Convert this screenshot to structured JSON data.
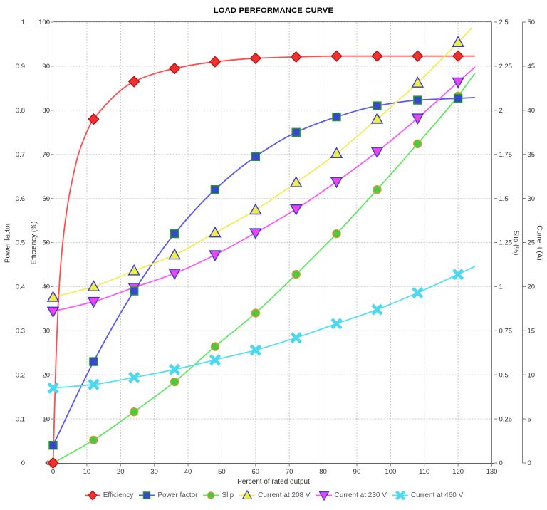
{
  "title": "LOAD PERFORMANCE CURVE",
  "chart_data": {
    "type": "line",
    "title": "LOAD PERFORMANCE CURVE",
    "xlabel": "Percent of rated output",
    "x_range": [
      0,
      130
    ],
    "x_tick_step": 10,
    "grid": "dashed",
    "legend_position": "bottom",
    "axes": {
      "power_factor": {
        "label": "Power factor",
        "range": [
          0,
          1
        ],
        "tick_step": 0.1,
        "side": "left-outer"
      },
      "efficiency": {
        "label": "Efficiency (%)",
        "range": [
          0,
          100
        ],
        "tick_step": 10,
        "side": "left-inner"
      },
      "slip": {
        "label": "Slip (%)",
        "range": [
          0,
          2.5
        ],
        "tick_step": 0.25,
        "side": "right-inner"
      },
      "current": {
        "label": "Current (A)",
        "range": [
          0,
          50
        ],
        "tick_step": 5,
        "side": "right-outer"
      }
    },
    "x": [
      0,
      12,
      24,
      36,
      48,
      60,
      72,
      84,
      96,
      108,
      120
    ],
    "series": [
      {
        "name": "Efficiency",
        "axis": "efficiency",
        "marker": "diamond",
        "line_color": "#ff5050",
        "marker_fill": "#ee3232",
        "marker_edge": "#bb1414",
        "values": [
          0,
          78,
          86.5,
          89.5,
          91,
          91.8,
          92.1,
          92.3,
          92.3,
          92.3,
          92.3
        ],
        "curve_lead_in": [
          [
            0,
            0
          ],
          [
            0.8,
            22
          ],
          [
            1.6,
            37
          ],
          [
            2.5,
            47
          ],
          [
            4,
            57
          ],
          [
            5.5,
            63.5
          ],
          [
            7.5,
            70
          ],
          [
            9.5,
            74.2
          ]
        ],
        "line_end": [
          125,
          92.3
        ]
      },
      {
        "name": "Power factor",
        "axis": "power_factor",
        "marker": "square",
        "line_color": "#5a5af0",
        "marker_fill": "#3a46d2",
        "marker_edge": "#1e9e1e",
        "values": [
          0.04,
          0.23,
          0.39,
          0.52,
          0.62,
          0.695,
          0.75,
          0.785,
          0.81,
          0.823,
          0.827
        ],
        "line_end": [
          125,
          0.829
        ]
      },
      {
        "name": "Slip",
        "axis": "slip",
        "marker": "circle",
        "line_color": "#62e862",
        "marker_fill": "#44cc44",
        "marker_edge": "#d89a28",
        "values": [
          0,
          0.13,
          0.29,
          0.46,
          0.66,
          0.85,
          1.07,
          1.3,
          1.55,
          1.81,
          2.08
        ],
        "line_end": [
          125,
          2.21
        ]
      },
      {
        "name": "Current at 208 V",
        "axis": "current",
        "marker": "triangle-up",
        "line_color": "#f6ec58",
        "marker_fill": "#eeee44",
        "marker_edge": "#3b3bd0",
        "values": [
          18.8,
          20.0,
          21.8,
          23.6,
          26.1,
          28.7,
          31.8,
          35.1,
          39.0,
          43.1,
          47.7
        ],
        "line_end": [
          124,
          49.3
        ]
      },
      {
        "name": "Current at 230 V",
        "axis": "current",
        "marker": "triangle-down",
        "line_color": "#f95df9",
        "marker_fill": "#ee44ee",
        "marker_edge": "#3b3bd0",
        "values": [
          17.2,
          18.3,
          19.9,
          21.5,
          23.6,
          26.1,
          28.8,
          31.9,
          35.3,
          39.1,
          43.2
        ],
        "line_end": [
          125,
          44.9
        ]
      },
      {
        "name": "Current at 460 V",
        "axis": "current",
        "marker": "x-cross",
        "line_color": "#55e0f5",
        "marker_fill": "#4cd8f0",
        "marker_edge": "#4cd8f0",
        "values": [
          8.5,
          8.9,
          9.7,
          10.6,
          11.7,
          12.8,
          14.2,
          15.8,
          17.4,
          19.3,
          21.4
        ],
        "line_end": [
          125,
          22.3
        ]
      }
    ],
    "colors": {
      "gridline": "#c8c8c8",
      "axis_line": "#808080",
      "tick_label": "#36363a",
      "legend_text": "#55555e"
    }
  }
}
